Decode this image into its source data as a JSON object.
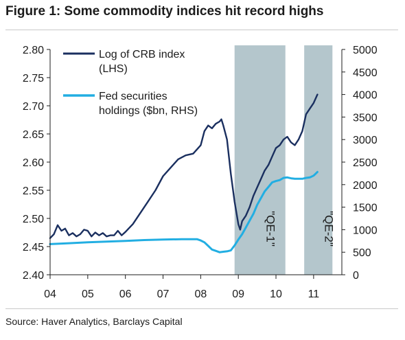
{
  "figure": {
    "title": "Figure 1: Some commodity indices hit record highs",
    "source": "Source: Haver Analytics, Barclays Capital"
  },
  "chart_data": {
    "type": "line",
    "title": "Figure 1: Some commodity indices hit record highs",
    "x_ticks": [
      "04",
      "05",
      "06",
      "07",
      "08",
      "09",
      "10",
      "11"
    ],
    "x_tick_years": [
      2004,
      2005,
      2006,
      2007,
      2008,
      2009,
      2010,
      2011
    ],
    "xlim": [
      2004.0,
      2011.75
    ],
    "y_left": {
      "range": [
        2.4,
        2.8
      ],
      "ticks": [
        "2.40",
        "2.45",
        "2.50",
        "2.55",
        "2.60",
        "2.65",
        "2.70",
        "2.75",
        "2.80"
      ]
    },
    "y_right": {
      "range": [
        0,
        5000
      ],
      "ticks": [
        "0",
        "500",
        "1000",
        "1500",
        "2000",
        "2500",
        "3000",
        "3500",
        "4000",
        "4500",
        "5000"
      ]
    },
    "legend_position": "top-left",
    "grid": false,
    "shaded_periods": [
      {
        "label": "\"QE-1\"",
        "start": 2008.9,
        "end": 2010.25,
        "color": "#b4c6cc"
      },
      {
        "label": "\"QE-2\"",
        "start": 2010.75,
        "end": 2011.5,
        "color": "#b4c6cc"
      }
    ],
    "series": [
      {
        "name": "Log of CRB index (LHS)",
        "axis": "left",
        "color": "#1a2f5f",
        "x": [
          2004.0,
          2004.1,
          2004.2,
          2004.3,
          2004.4,
          2004.5,
          2004.6,
          2004.7,
          2004.8,
          2004.9,
          2005.0,
          2005.1,
          2005.2,
          2005.3,
          2005.4,
          2005.5,
          2005.6,
          2005.7,
          2005.8,
          2005.9,
          2006.0,
          2006.2,
          2006.4,
          2006.6,
          2006.8,
          2007.0,
          2007.2,
          2007.4,
          2007.6,
          2007.8,
          2008.0,
          2008.1,
          2008.2,
          2008.3,
          2008.4,
          2008.5,
          2008.55,
          2008.6,
          2008.7,
          2008.8,
          2008.9,
          2009.0,
          2009.05,
          2009.1,
          2009.2,
          2009.3,
          2009.4,
          2009.5,
          2009.6,
          2009.7,
          2009.8,
          2009.9,
          2010.0,
          2010.1,
          2010.2,
          2010.3,
          2010.4,
          2010.5,
          2010.6,
          2010.7,
          2010.8,
          2010.9,
          2011.0,
          2011.1
        ],
        "values": [
          2.465,
          2.472,
          2.488,
          2.478,
          2.482,
          2.47,
          2.474,
          2.468,
          2.472,
          2.48,
          2.478,
          2.468,
          2.475,
          2.47,
          2.474,
          2.468,
          2.47,
          2.47,
          2.478,
          2.47,
          2.476,
          2.49,
          2.51,
          2.53,
          2.55,
          2.575,
          2.59,
          2.605,
          2.612,
          2.615,
          2.63,
          2.655,
          2.665,
          2.66,
          2.668,
          2.672,
          2.676,
          2.665,
          2.64,
          2.58,
          2.53,
          2.49,
          2.48,
          2.495,
          2.505,
          2.52,
          2.54,
          2.555,
          2.57,
          2.585,
          2.595,
          2.61,
          2.625,
          2.63,
          2.64,
          2.645,
          2.635,
          2.63,
          2.64,
          2.655,
          2.685,
          2.695,
          2.705,
          2.72
        ]
      },
      {
        "name": "Fed securities holdings ($bn, RHS)",
        "axis": "right",
        "color": "#22aee2",
        "x": [
          2004.0,
          2004.5,
          2005.0,
          2005.5,
          2006.0,
          2006.5,
          2007.0,
          2007.5,
          2007.9,
          2008.0,
          2008.1,
          2008.2,
          2008.3,
          2008.4,
          2008.5,
          2008.6,
          2008.7,
          2008.8,
          2008.9,
          2009.0,
          2009.1,
          2009.2,
          2009.3,
          2009.4,
          2009.5,
          2009.6,
          2009.7,
          2009.8,
          2009.9,
          2010.0,
          2010.1,
          2010.2,
          2010.3,
          2010.4,
          2010.5,
          2010.6,
          2010.7,
          2010.8,
          2010.9,
          2011.0,
          2011.1
        ],
        "values": [
          680,
          700,
          720,
          735,
          750,
          770,
          780,
          790,
          790,
          760,
          720,
          640,
          560,
          530,
          500,
          510,
          520,
          540,
          650,
          780,
          900,
          1050,
          1200,
          1350,
          1550,
          1700,
          1850,
          1950,
          2050,
          2080,
          2100,
          2150,
          2160,
          2140,
          2130,
          2130,
          2130,
          2150,
          2160,
          2200,
          2280
        ]
      }
    ]
  }
}
